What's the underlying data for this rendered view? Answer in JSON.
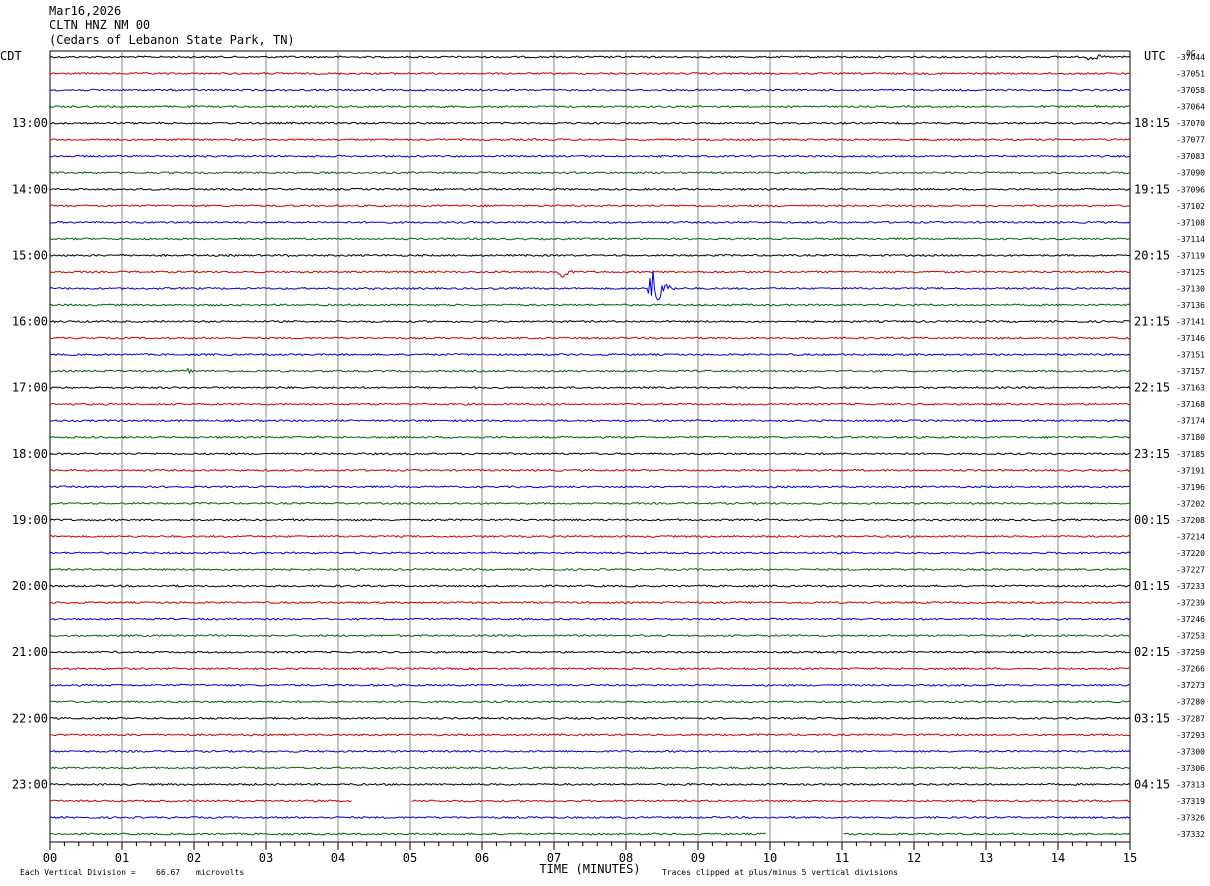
{
  "header": {
    "date": "Mar16,2026",
    "station": "CLTN HNZ NM 00",
    "location": "(Cedars of Lebanon State Park, TN)"
  },
  "chart_data": {
    "type": "line",
    "title": "",
    "left_timezone": "CDT",
    "right_timezone": "UTC",
    "right_corner_label": "0G",
    "xlabel": "TIME (MINUTES)",
    "x_tick_labels": [
      "00",
      "01",
      "02",
      "03",
      "04",
      "05",
      "06",
      "07",
      "08",
      "09",
      "10",
      "11",
      "12",
      "13",
      "14",
      "15"
    ],
    "xlim": [
      0,
      15
    ],
    "trace_colors": [
      "#000000",
      "#cc0000",
      "#0000cc",
      "#006600"
    ],
    "left_hour_labels": [
      "13:00",
      "14:00",
      "15:00",
      "16:00",
      "17:00",
      "18:00",
      "19:00",
      "20:00",
      "21:00",
      "22:00",
      "23:00"
    ],
    "right_hour_labels": [
      "18:15",
      "19:15",
      "20:15",
      "21:15",
      "22:15",
      "23:15",
      "00:15",
      "01:15",
      "02:15",
      "03:15",
      "04:15"
    ],
    "offsets": [
      "-37044",
      "-37051",
      "-37058",
      "-37064",
      "-37070",
      "-37077",
      "-37083",
      "-37090",
      "-37096",
      "-37102",
      "-37108",
      "-37114",
      "-37119",
      "-37125",
      "-37130",
      "-37136",
      "-37141",
      "-37146",
      "-37151",
      "-37157",
      "-37163",
      "-37168",
      "-37174",
      "-37180",
      "-37185",
      "-37191",
      "-37196",
      "-37202",
      "-37208",
      "-37214",
      "-37220",
      "-37227",
      "-37233",
      "-37239",
      "-37246",
      "-37253",
      "-37259",
      "-37266",
      "-37273",
      "-37280",
      "-37287",
      "-37293",
      "-37300",
      "-37306",
      "-37313",
      "-37319",
      "-37326",
      "-37332"
    ],
    "events": [
      {
        "trace": 0,
        "minute": 14.4,
        "amplitude": 4,
        "duration": 0.6
      },
      {
        "trace": 3,
        "minute": 14.5,
        "amplitude": 2,
        "duration": 0.4
      },
      {
        "trace": 12,
        "minute": 3.3,
        "amplitude": 4,
        "duration": 0.1
      },
      {
        "trace": 13,
        "minute": 7.05,
        "amplitude": 14,
        "duration": 0.3
      },
      {
        "trace": 14,
        "minute": 8.3,
        "amplitude": 28,
        "duration": 0.5
      },
      {
        "trace": 19,
        "minute": 1.9,
        "amplitude": 4,
        "duration": 0.15
      }
    ],
    "gaps": [
      {
        "trace": 45,
        "start": 4.2,
        "end": 5.0
      },
      {
        "trace": 47,
        "start": 9.95,
        "end": 11.0
      }
    ],
    "vertical_division": "66.67",
    "footer_left": "Each Vertical Division =",
    "footer_units": "microvolts",
    "footer_right": "Traces clipped at plus/minus 5 vertical divisions"
  }
}
